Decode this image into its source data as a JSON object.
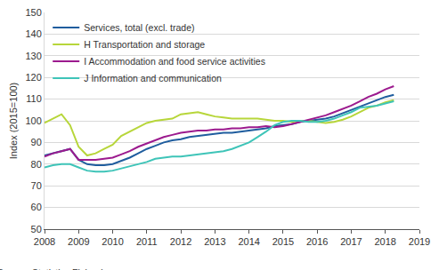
{
  "chart_data": {
    "type": "line",
    "y_label": "Index (2015=100)",
    "source": "Source: Statistics Finland",
    "x": [
      2008,
      2008.25,
      2008.5,
      2008.75,
      2009,
      2009.25,
      2009.5,
      2009.75,
      2010,
      2010.25,
      2010.5,
      2010.75,
      2011,
      2011.25,
      2011.5,
      2011.75,
      2012,
      2012.25,
      2012.5,
      2012.75,
      2013,
      2013.25,
      2013.5,
      2013.75,
      2014,
      2014.25,
      2014.5,
      2014.75,
      2015,
      2015.25,
      2015.5,
      2015.75,
      2016,
      2016.25,
      2016.5,
      2016.75,
      2017,
      2017.25,
      2017.5,
      2017.75,
      2018,
      2018.25
    ],
    "series": [
      {
        "name": "Services, total (excl. trade)",
        "color": "#1f5d9e",
        "values": [
          84,
          85,
          86,
          87,
          82,
          80,
          79.5,
          79.5,
          80,
          81.5,
          83,
          85,
          87,
          88.5,
          90,
          91,
          91.5,
          92.5,
          93,
          93.5,
          94,
          94.5,
          94.5,
          95,
          95.5,
          96,
          96.5,
          97.5,
          98,
          98.5,
          99.5,
          100,
          100.5,
          101,
          102,
          103.5,
          105,
          106.5,
          108,
          109.5,
          111,
          112
        ]
      },
      {
        "name": "H Transportation and storage",
        "color": "#b7d63a",
        "values": [
          99,
          101,
          103,
          98,
          88,
          84,
          85,
          87,
          89,
          93,
          95,
          97,
          99,
          100,
          100.5,
          101,
          103,
          103.5,
          104,
          103,
          102,
          101.5,
          101,
          101,
          101,
          101,
          100.5,
          100,
          100,
          99.5,
          100,
          100,
          99.5,
          99,
          99.5,
          100.5,
          102,
          104,
          106,
          107,
          108.5,
          109.5
        ]
      },
      {
        "name": "I Accommodation and food service activities",
        "color": "#9c1a8e",
        "values": [
          83.5,
          85,
          86,
          87,
          82,
          82,
          82,
          82.5,
          83,
          84.5,
          86,
          88,
          89.5,
          91,
          92.5,
          93.5,
          94.5,
          95,
          95.5,
          95.5,
          96,
          96,
          96.5,
          96.5,
          97,
          97,
          97.5,
          97,
          97.5,
          98.5,
          99.5,
          100.5,
          101.5,
          102.5,
          104,
          105.5,
          107,
          109,
          111,
          112.5,
          114.5,
          116
        ]
      },
      {
        "name": "J Information and communication",
        "color": "#3ec4b8",
        "values": [
          78.5,
          79.5,
          80,
          80,
          78.5,
          77,
          76.5,
          76.5,
          77,
          78,
          79,
          80,
          81,
          82.5,
          83,
          83.5,
          83.5,
          84,
          84.5,
          85,
          85.5,
          86,
          87,
          88.5,
          90,
          92.5,
          95,
          98,
          99.5,
          100,
          100,
          99.5,
          99.5,
          100,
          101,
          102.5,
          104,
          106,
          106.5,
          107,
          108,
          109
        ]
      }
    ],
    "xlim": [
      2008,
      2019
    ],
    "xticks": [
      2008,
      2009,
      2010,
      2011,
      2012,
      2013,
      2014,
      2015,
      2016,
      2017,
      2018,
      2019
    ],
    "ylim": [
      50,
      150
    ],
    "yticks": [
      50,
      60,
      70,
      80,
      90,
      100,
      110,
      120,
      130,
      140,
      150
    ],
    "grid": true,
    "legend": "top left"
  }
}
